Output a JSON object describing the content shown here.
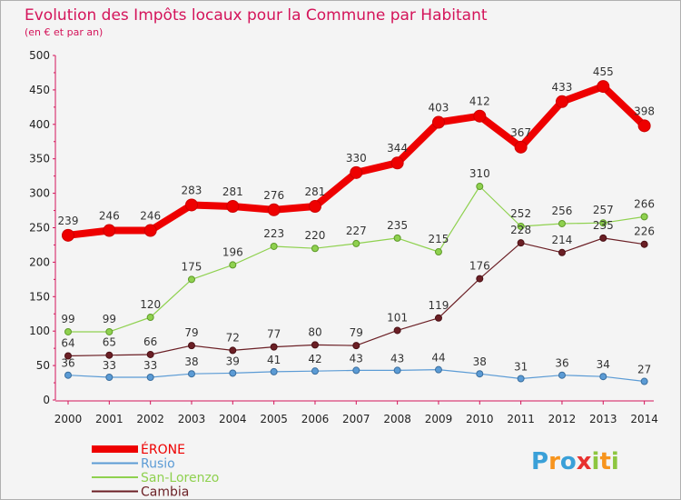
{
  "chart_data": {
    "type": "line",
    "title": "Evolution des Impôts locaux pour la Commune par Habitant",
    "subtitle": "(en € et par an)",
    "x": [
      "2000",
      "2001",
      "2002",
      "2003",
      "2004",
      "2005",
      "2006",
      "2007",
      "2008",
      "2009",
      "2010",
      "2011",
      "2012",
      "2013",
      "2014"
    ],
    "yticks": [
      "0",
      "50",
      "100",
      "150",
      "200",
      "250",
      "300",
      "350",
      "400",
      "450",
      "500"
    ],
    "ylim": [
      0,
      500
    ],
    "grid": false,
    "legend_position": "bottom-left",
    "series": [
      {
        "name": "Rusio",
        "color": "#5b9bd5",
        "values": [
          36,
          33,
          33,
          38,
          39,
          41,
          42,
          43,
          43,
          44,
          38,
          31,
          36,
          34,
          27
        ],
        "labels": [
          "36",
          "33",
          "33",
          "38",
          "39",
          "41",
          "42",
          "43",
          "43",
          "44",
          "38",
          "31",
          "36",
          "34",
          "27"
        ]
      },
      {
        "name": "San-Lorenzo",
        "color": "#8fd14f",
        "values": [
          99,
          99,
          120,
          175,
          196,
          223,
          220,
          227,
          235,
          215,
          310,
          252,
          256,
          257,
          266
        ],
        "labels": [
          "99",
          "99",
          "120",
          "175",
          "196",
          "223",
          "220",
          "227",
          "235",
          "215",
          "310",
          "252",
          "256",
          "257",
          "266"
        ]
      },
      {
        "name": "Cambia",
        "color": "#6b1f25",
        "values": [
          64,
          65,
          66,
          79,
          72,
          77,
          80,
          79,
          101,
          119,
          176,
          228,
          214,
          235,
          226
        ],
        "labels": [
          "64",
          "65",
          "66",
          "79",
          "72",
          "77",
          "80",
          "79",
          "101",
          "119",
          "176",
          "228",
          "214",
          "235",
          "226"
        ]
      },
      {
        "name": "ÉRONE",
        "color": "#ee0000",
        "values": [
          239,
          246,
          246,
          283,
          281,
          276,
          281,
          330,
          344,
          403,
          412,
          367,
          433,
          455,
          398
        ],
        "labels": [
          "239",
          "246",
          "246",
          "283",
          "281",
          "276",
          "281",
          "330",
          "344",
          "403",
          "412",
          "367",
          "433",
          "455",
          "398"
        ]
      }
    ]
  },
  "legend": [
    {
      "name": "ÉRONE",
      "color": "#ee0000"
    },
    {
      "name": "Rusio",
      "color": "#5b9bd5"
    },
    {
      "name": "San-Lorenzo",
      "color": "#8fd14f"
    },
    {
      "name": "Cambia",
      "color": "#6b1f25"
    }
  ],
  "logo": {
    "text": "Proxiti",
    "colors": [
      "#3aa0d8",
      "#f7941d",
      "#3aa0d8",
      "#e8312f",
      "#8dc63f",
      "#f7941d",
      "#8dc63f"
    ]
  }
}
